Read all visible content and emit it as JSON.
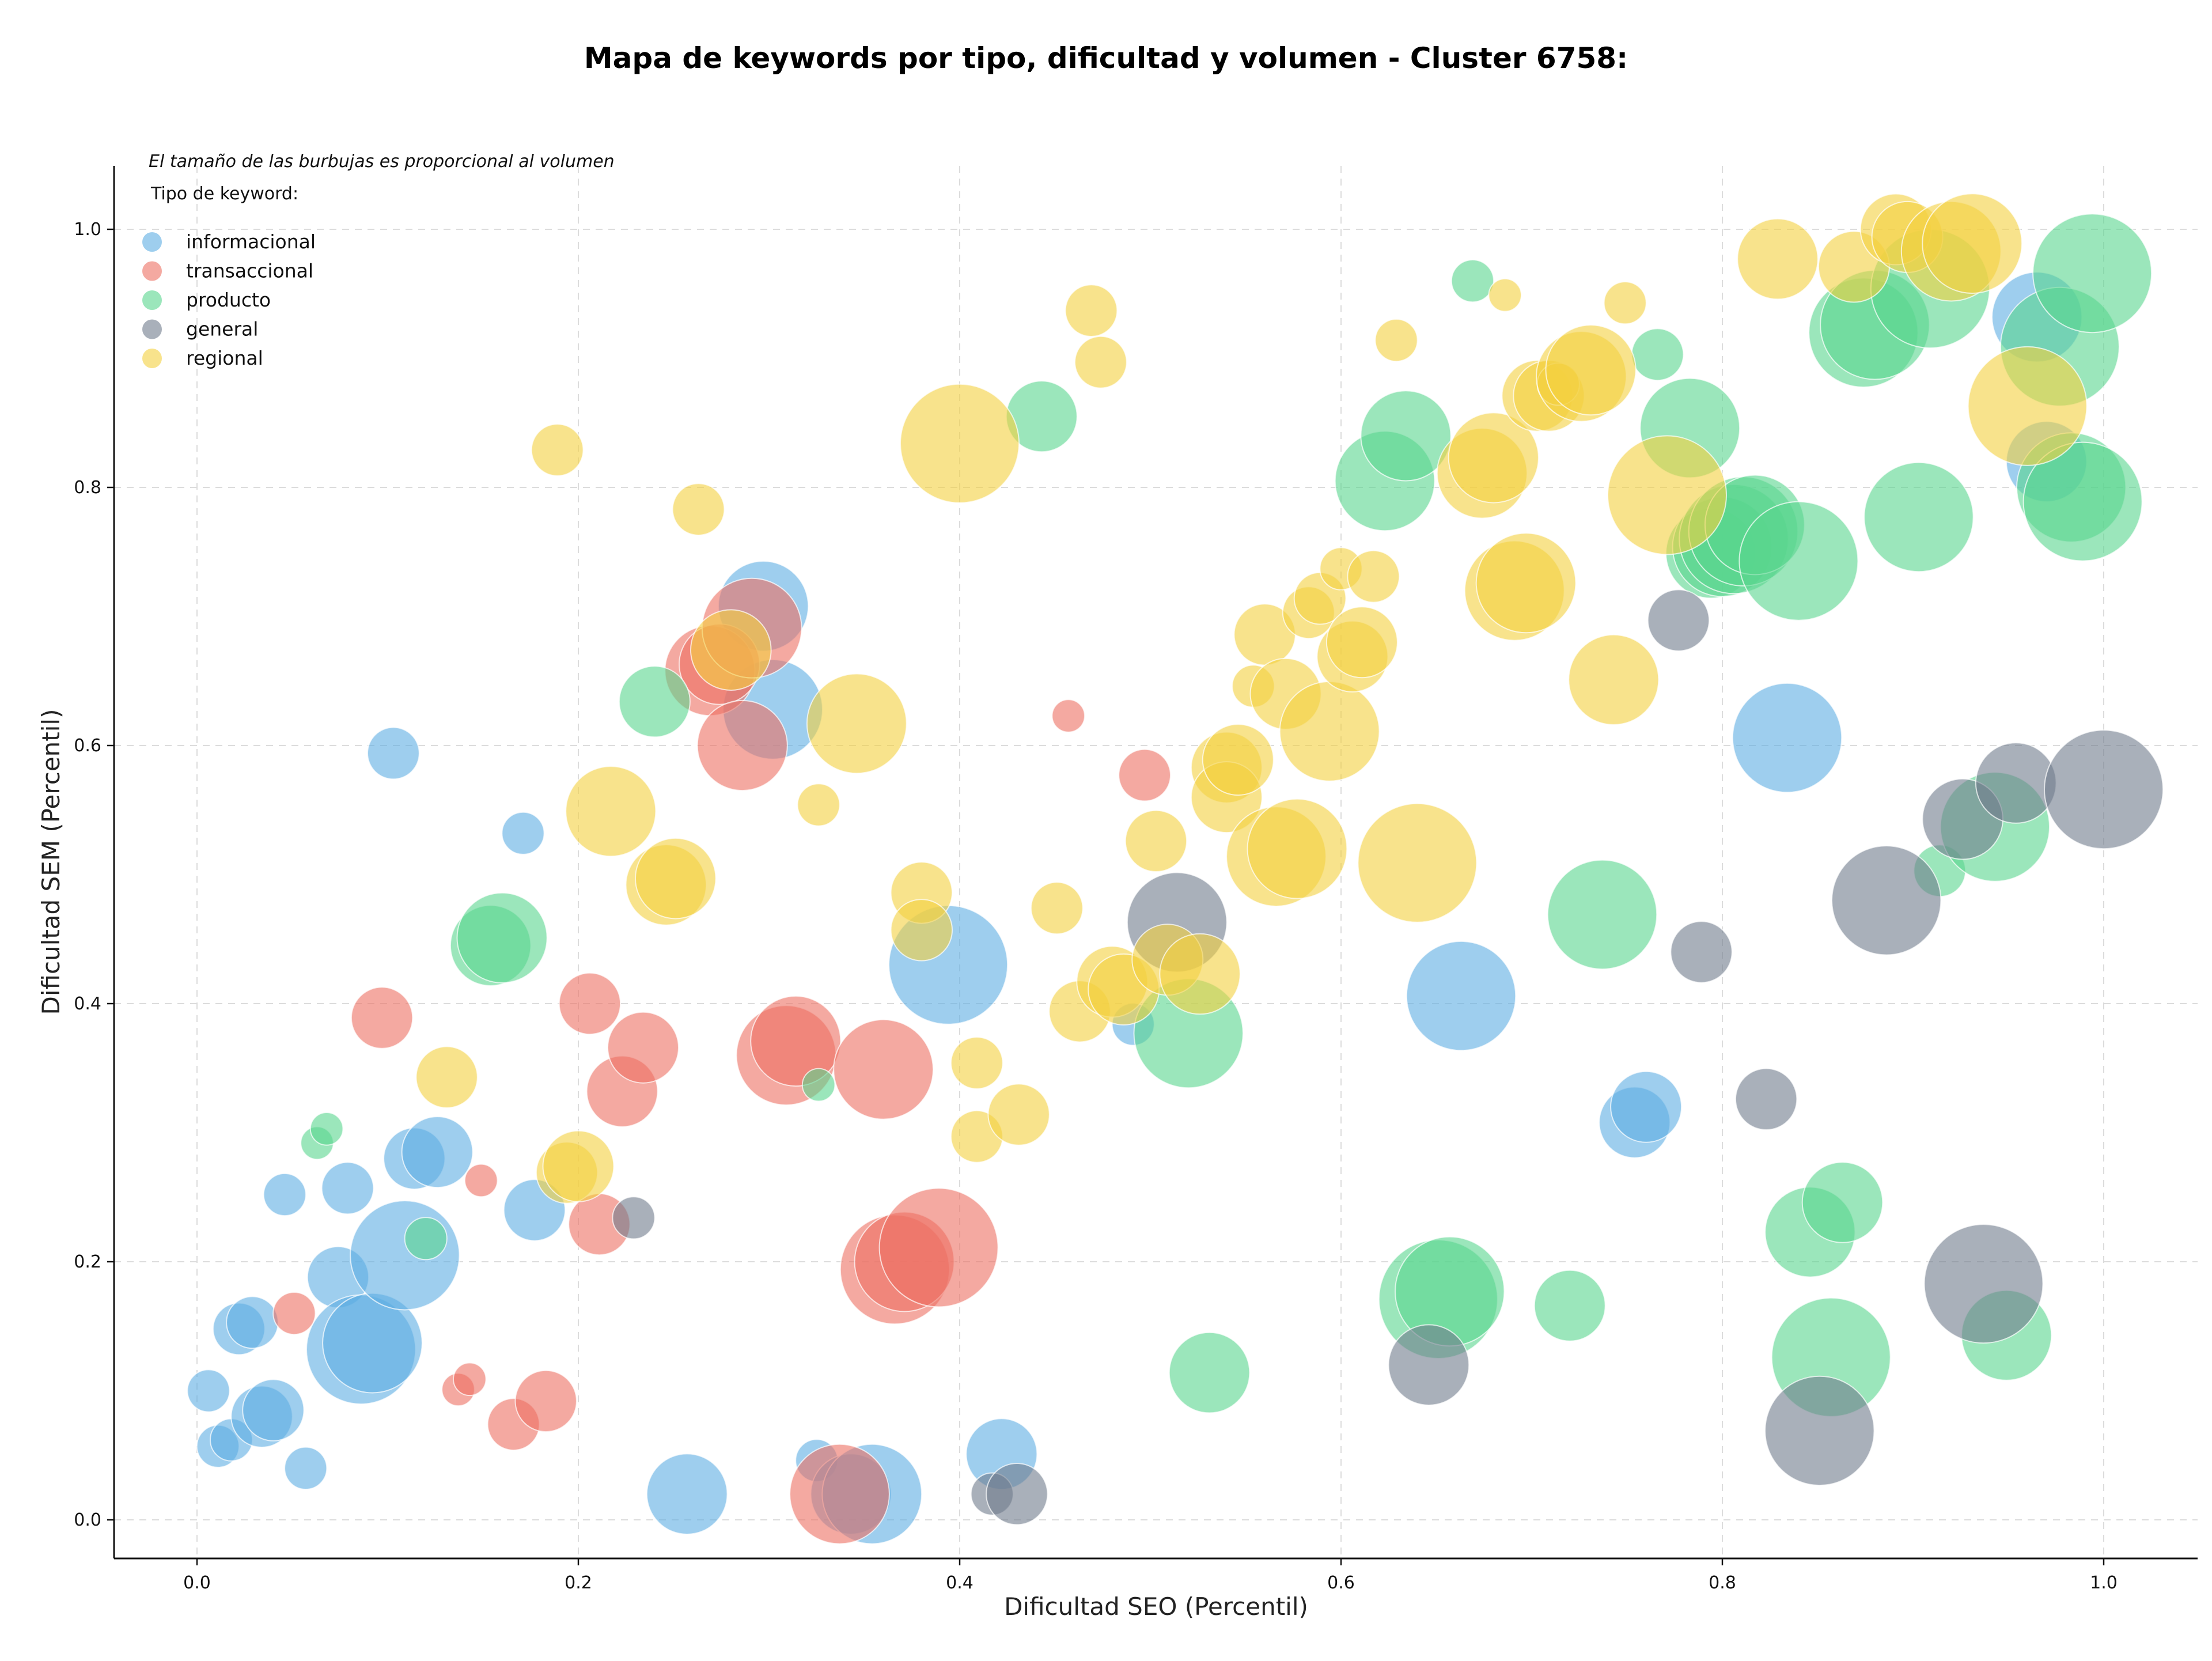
{
  "chart_data": {
    "type": "scatter",
    "title": "Mapa de keywords por tipo, dificultad y volumen - Cluster 6758:",
    "xlabel": "Dificultad SEO (Percentil)",
    "ylabel": "Dificultad SEM (Percentil)",
    "note": "El tamaño de las burbujas es proporcional al volumen",
    "legend_title": "Tipo de keyword:",
    "legend_position": "top-left",
    "grid": true,
    "xlim": [
      -0.04,
      1.05
    ],
    "ylim": [
      -0.03,
      1.05
    ],
    "xticks": [
      0.0,
      0.2,
      0.4,
      0.6,
      0.8,
      1.0
    ],
    "yticks": [
      0.0,
      0.2,
      0.4,
      0.6,
      0.8,
      1.0
    ],
    "xtick_labels": [
      "0.0",
      "0.2",
      "0.4",
      "0.6",
      "0.8",
      "1.0"
    ],
    "ytick_labels": [
      "0.0",
      "0.2",
      "0.4",
      "0.6",
      "0.8",
      "1.0"
    ],
    "series": [
      {
        "name": "informacional",
        "color": "#5dade2",
        "points": [
          [
            0.006,
            0.1,
            2
          ],
          [
            0.011,
            0.057,
            2
          ],
          [
            0.018,
            0.062,
            2
          ],
          [
            0.022,
            0.148,
            3
          ],
          [
            0.029,
            0.153,
            3
          ],
          [
            0.034,
            0.08,
            4
          ],
          [
            0.04,
            0.085,
            4
          ],
          [
            0.046,
            0.252,
            2
          ],
          [
            0.057,
            0.04,
            2
          ],
          [
            0.074,
            0.188,
            4
          ],
          [
            0.079,
            0.257,
            3
          ],
          [
            0.086,
            0.132,
            9
          ],
          [
            0.092,
            0.137,
            8
          ],
          [
            0.103,
            0.594,
            3
          ],
          [
            0.109,
            0.205,
            9
          ],
          [
            0.114,
            0.28,
            4
          ],
          [
            0.126,
            0.285,
            5
          ],
          [
            0.171,
            0.532,
            2
          ],
          [
            0.177,
            0.24,
            4
          ],
          [
            0.257,
            0.02,
            6
          ],
          [
            0.297,
            0.708,
            7
          ],
          [
            0.302,
            0.628,
            8
          ],
          [
            0.325,
            0.046,
            2
          ],
          [
            0.343,
            0.02,
            6
          ],
          [
            0.354,
            0.02,
            8
          ],
          [
            0.394,
            0.43,
            10
          ],
          [
            0.422,
            0.051,
            5
          ],
          [
            0.491,
            0.384,
            2
          ],
          [
            0.663,
            0.406,
            9
          ],
          [
            0.754,
            0.308,
            5
          ],
          [
            0.76,
            0.32,
            5
          ],
          [
            0.834,
            0.606,
            9
          ],
          [
            0.965,
            0.932,
            7
          ],
          [
            0.97,
            0.82,
            6
          ]
        ]
      },
      {
        "name": "transaccional",
        "color": "#ec7063",
        "points": [
          [
            0.051,
            0.16,
            2
          ],
          [
            0.097,
            0.389,
            4
          ],
          [
            0.137,
            0.101,
            1
          ],
          [
            0.143,
            0.109,
            1
          ],
          [
            0.149,
            0.263,
            1
          ],
          [
            0.166,
            0.074,
            3
          ],
          [
            0.183,
            0.092,
            4
          ],
          [
            0.206,
            0.4,
            4
          ],
          [
            0.211,
            0.229,
            4
          ],
          [
            0.223,
            0.332,
            5
          ],
          [
            0.234,
            0.366,
            5
          ],
          [
            0.269,
            0.658,
            7
          ],
          [
            0.274,
            0.663,
            6
          ],
          [
            0.286,
            0.6,
            7
          ],
          [
            0.291,
            0.691,
            8
          ],
          [
            0.309,
            0.36,
            8
          ],
          [
            0.314,
            0.371,
            7
          ],
          [
            0.337,
            0.02,
            8
          ],
          [
            0.36,
            0.349,
            8
          ],
          [
            0.366,
            0.194,
            9
          ],
          [
            0.371,
            0.2,
            8
          ],
          [
            0.389,
            0.211,
            10
          ],
          [
            0.457,
            0.623,
            1
          ],
          [
            0.497,
            0.577,
            3
          ]
        ]
      },
      {
        "name": "producto",
        "color": "#58d68d",
        "points": [
          [
            0.063,
            0.292,
            1
          ],
          [
            0.068,
            0.303,
            1
          ],
          [
            0.12,
            0.218,
            2
          ],
          [
            0.154,
            0.445,
            6
          ],
          [
            0.16,
            0.451,
            7
          ],
          [
            0.24,
            0.634,
            5
          ],
          [
            0.326,
            0.337,
            1
          ],
          [
            0.443,
            0.855,
            5
          ],
          [
            0.52,
            0.377,
            9
          ],
          [
            0.531,
            0.114,
            6
          ],
          [
            0.623,
            0.805,
            8
          ],
          [
            0.634,
            0.84,
            7
          ],
          [
            0.651,
            0.171,
            10
          ],
          [
            0.657,
            0.177,
            9
          ],
          [
            0.669,
            0.96,
            2
          ],
          [
            0.72,
            0.166,
            5
          ],
          [
            0.737,
            0.469,
            9
          ],
          [
            0.766,
            0.903,
            3
          ],
          [
            0.783,
            0.846,
            8
          ],
          [
            0.794,
            0.749,
            7
          ],
          [
            0.8,
            0.754,
            8
          ],
          [
            0.806,
            0.76,
            9
          ],
          [
            0.811,
            0.766,
            9
          ],
          [
            0.817,
            0.771,
            8
          ],
          [
            0.84,
            0.743,
            10
          ],
          [
            0.846,
            0.223,
            7
          ],
          [
            0.857,
            0.126,
            10
          ],
          [
            0.863,
            0.246,
            6
          ],
          [
            0.874,
            0.92,
            9
          ],
          [
            0.88,
            0.926,
            9
          ],
          [
            0.903,
            0.777,
            9
          ],
          [
            0.909,
            0.954,
            10
          ],
          [
            0.914,
            0.503,
            3
          ],
          [
            0.943,
            0.537,
            9
          ],
          [
            0.949,
            0.143,
            7
          ],
          [
            0.977,
            0.909,
            10
          ],
          [
            0.983,
            0.8,
            9
          ],
          [
            0.989,
            0.789,
            10
          ],
          [
            0.994,
            0.966,
            10
          ]
        ]
      },
      {
        "name": "general",
        "color": "#707b8c",
        "points": [
          [
            0.229,
            0.234,
            2
          ],
          [
            0.417,
            0.02,
            2
          ],
          [
            0.43,
            0.02,
            4
          ],
          [
            0.514,
            0.463,
            8
          ],
          [
            0.646,
            0.12,
            6
          ],
          [
            0.777,
            0.697,
            4
          ],
          [
            0.789,
            0.44,
            4
          ],
          [
            0.823,
            0.326,
            4
          ],
          [
            0.851,
            0.069,
            9
          ],
          [
            0.886,
            0.48,
            9
          ],
          [
            0.926,
            0.543,
            6
          ],
          [
            0.937,
            0.183,
            10
          ],
          [
            0.954,
            0.571,
            6
          ],
          [
            1.0,
            0.566,
            10
          ]
        ]
      },
      {
        "name": "regional",
        "color": "#f4d03f",
        "points": [
          [
            0.131,
            0.343,
            4
          ],
          [
            0.189,
            0.829,
            3
          ],
          [
            0.194,
            0.269,
            4
          ],
          [
            0.2,
            0.274,
            5
          ],
          [
            0.217,
            0.549,
            7
          ],
          [
            0.246,
            0.492,
            6
          ],
          [
            0.251,
            0.497,
            6
          ],
          [
            0.263,
            0.783,
            3
          ],
          [
            0.28,
            0.674,
            6
          ],
          [
            0.326,
            0.554,
            2
          ],
          [
            0.346,
            0.617,
            8
          ],
          [
            0.38,
            0.486,
            4
          ],
          [
            0.38,
            0.457,
            4
          ],
          [
            0.4,
            0.834,
            10
          ],
          [
            0.409,
            0.354,
            3
          ],
          [
            0.409,
            0.297,
            3
          ],
          [
            0.431,
            0.314,
            4
          ],
          [
            0.451,
            0.474,
            3
          ],
          [
            0.463,
            0.394,
            4
          ],
          [
            0.469,
            0.937,
            3
          ],
          [
            0.474,
            0.897,
            3
          ],
          [
            0.48,
            0.417,
            5
          ],
          [
            0.486,
            0.411,
            5
          ],
          [
            0.503,
            0.526,
            4
          ],
          [
            0.509,
            0.434,
            5
          ],
          [
            0.526,
            0.423,
            6
          ],
          [
            0.54,
            0.583,
            5
          ],
          [
            0.54,
            0.56,
            5
          ],
          [
            0.546,
            0.589,
            5
          ],
          [
            0.554,
            0.646,
            2
          ],
          [
            0.56,
            0.686,
            4
          ],
          [
            0.566,
            0.514,
            8
          ],
          [
            0.571,
            0.64,
            5
          ],
          [
            0.577,
            0.52,
            8
          ],
          [
            0.583,
            0.703,
            3
          ],
          [
            0.589,
            0.714,
            3
          ],
          [
            0.594,
            0.611,
            8
          ],
          [
            0.6,
            0.737,
            2
          ],
          [
            0.606,
            0.669,
            5
          ],
          [
            0.611,
            0.68,
            5
          ],
          [
            0.617,
            0.731,
            3
          ],
          [
            0.629,
            0.914,
            2
          ],
          [
            0.64,
            0.509,
            10
          ],
          [
            0.674,
            0.811,
            7
          ],
          [
            0.68,
            0.823,
            7
          ],
          [
            0.686,
            0.949,
            1
          ],
          [
            0.691,
            0.72,
            8
          ],
          [
            0.697,
            0.726,
            8
          ],
          [
            0.703,
            0.871,
            5
          ],
          [
            0.709,
            0.871,
            5
          ],
          [
            0.714,
            0.88,
            2
          ],
          [
            0.726,
            0.886,
            7
          ],
          [
            0.731,
            0.891,
            7
          ],
          [
            0.743,
            0.651,
            7
          ],
          [
            0.749,
            0.943,
            2
          ],
          [
            0.771,
            0.794,
            10
          ],
          [
            0.829,
            0.977,
            6
          ],
          [
            0.869,
            0.971,
            5
          ],
          [
            0.891,
            1.0,
            5
          ],
          [
            0.897,
            0.994,
            5
          ],
          [
            0.92,
            0.983,
            8
          ],
          [
            0.931,
            0.989,
            8
          ],
          [
            0.96,
            0.863,
            10
          ]
        ]
      }
    ]
  }
}
